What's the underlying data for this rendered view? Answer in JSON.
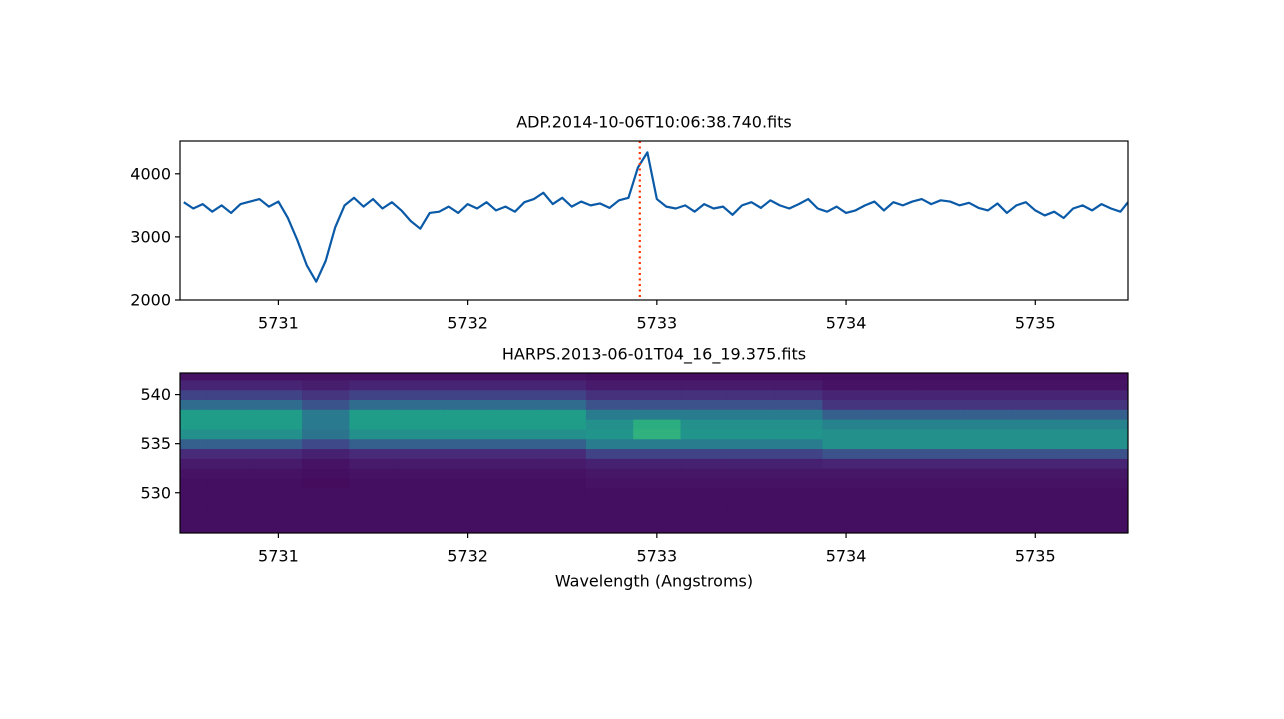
{
  "chart_data": [
    {
      "type": "line",
      "title": "ADP.2014-10-06T10:06:38.740.fits",
      "x": [
        5730.5,
        5730.55,
        5730.6,
        5730.65,
        5730.7,
        5730.75,
        5730.8,
        5730.85,
        5730.9,
        5730.95,
        5731.0,
        5731.05,
        5731.1,
        5731.15,
        5731.2,
        5731.25,
        5731.3,
        5731.35,
        5731.4,
        5731.45,
        5731.5,
        5731.55,
        5731.6,
        5731.65,
        5731.7,
        5731.75,
        5731.8,
        5731.85,
        5731.9,
        5731.95,
        5732.0,
        5732.05,
        5732.1,
        5732.15,
        5732.2,
        5732.25,
        5732.3,
        5732.35,
        5732.4,
        5732.45,
        5732.5,
        5732.55,
        5732.6,
        5732.65,
        5732.7,
        5732.75,
        5732.8,
        5732.85,
        5732.9,
        5732.95,
        5733.0,
        5733.05,
        5733.1,
        5733.15,
        5733.2,
        5733.25,
        5733.3,
        5733.35,
        5733.4,
        5733.45,
        5733.5,
        5733.55,
        5733.6,
        5733.65,
        5733.7,
        5733.75,
        5733.8,
        5733.85,
        5733.9,
        5733.95,
        5734.0,
        5734.05,
        5734.1,
        5734.15,
        5734.2,
        5734.25,
        5734.3,
        5734.35,
        5734.4,
        5734.45,
        5734.5,
        5734.55,
        5734.6,
        5734.65,
        5734.7,
        5734.75,
        5734.8,
        5734.85,
        5734.9,
        5734.95,
        5735.0,
        5735.05,
        5735.1,
        5735.15,
        5735.2,
        5735.25,
        5735.3,
        5735.35,
        5735.4,
        5735.45,
        5735.49
      ],
      "series": [
        {
          "color": "#0a5aa8",
          "values": [
            3550,
            3450,
            3520,
            3400,
            3500,
            3380,
            3520,
            3560,
            3600,
            3480,
            3560,
            3300,
            2950,
            2550,
            2290,
            2620,
            3150,
            3500,
            3620,
            3480,
            3600,
            3450,
            3550,
            3420,
            3250,
            3130,
            3380,
            3400,
            3480,
            3380,
            3520,
            3450,
            3550,
            3420,
            3480,
            3400,
            3550,
            3600,
            3700,
            3520,
            3620,
            3480,
            3560,
            3500,
            3530,
            3460,
            3580,
            3620,
            4100,
            4340,
            3600,
            3480,
            3450,
            3500,
            3400,
            3520,
            3450,
            3480,
            3350,
            3500,
            3550,
            3460,
            3580,
            3500,
            3450,
            3520,
            3600,
            3450,
            3400,
            3480,
            3380,
            3420,
            3500,
            3560,
            3420,
            3550,
            3500,
            3560,
            3600,
            3520,
            3580,
            3560,
            3500,
            3540,
            3460,
            3420,
            3530,
            3380,
            3500,
            3550,
            3420,
            3340,
            3400,
            3300,
            3450,
            3500,
            3420,
            3520,
            3450,
            3400,
            3550
          ]
        }
      ],
      "vline": {
        "value": 5732.91,
        "color": "#ff3300",
        "style": "dotted"
      },
      "xlim": [
        5730.48,
        5735.49
      ],
      "xticks": [
        5731,
        5732,
        5733,
        5734,
        5735
      ],
      "ylim": [
        2000,
        4520
      ],
      "yticks": [
        2000,
        3000,
        4000
      ]
    },
    {
      "type": "heatmap",
      "title": "HARPS.2013-06-01T04_16_19.375.fits",
      "x_label": "Wavelength (Angstroms)",
      "colormap": "viridis",
      "clim": [
        0,
        1
      ],
      "x": [
        5730.5,
        5730.75,
        5731.0,
        5731.25,
        5731.5,
        5731.75,
        5732.0,
        5732.25,
        5732.5,
        5732.75,
        5733.0,
        5733.25,
        5733.5,
        5733.75,
        5734.0,
        5734.25,
        5734.5,
        5734.75,
        5735.0,
        5735.25,
        5735.5
      ],
      "y": [
        526,
        527,
        528,
        529,
        530,
        531,
        532,
        533,
        534,
        535,
        536,
        537,
        538,
        539,
        540,
        541,
        542
      ],
      "z": [
        [
          0.04,
          0.04,
          0.04,
          0.04,
          0.04,
          0.04,
          0.04,
          0.04,
          0.04,
          0.04,
          0.04,
          0.04,
          0.04,
          0.04,
          0.04,
          0.04,
          0.04,
          0.04,
          0.04,
          0.04,
          0.04
        ],
        [
          0.04,
          0.04,
          0.04,
          0.04,
          0.04,
          0.04,
          0.04,
          0.04,
          0.04,
          0.04,
          0.04,
          0.04,
          0.04,
          0.04,
          0.04,
          0.04,
          0.04,
          0.04,
          0.04,
          0.04,
          0.04
        ],
        [
          0.04,
          0.04,
          0.04,
          0.04,
          0.04,
          0.04,
          0.04,
          0.04,
          0.04,
          0.04,
          0.04,
          0.04,
          0.04,
          0.04,
          0.04,
          0.04,
          0.04,
          0.04,
          0.04,
          0.04,
          0.04
        ],
        [
          0.04,
          0.04,
          0.04,
          0.04,
          0.04,
          0.04,
          0.04,
          0.04,
          0.04,
          0.04,
          0.04,
          0.04,
          0.04,
          0.04,
          0.04,
          0.04,
          0.04,
          0.04,
          0.04,
          0.04,
          0.04
        ],
        [
          0.04,
          0.04,
          0.04,
          0.04,
          0.04,
          0.04,
          0.04,
          0.04,
          0.04,
          0.04,
          0.04,
          0.04,
          0.04,
          0.04,
          0.04,
          0.04,
          0.04,
          0.04,
          0.04,
          0.04,
          0.04
        ],
        [
          0.04,
          0.04,
          0.04,
          0.03,
          0.04,
          0.04,
          0.04,
          0.04,
          0.04,
          0.05,
          0.05,
          0.05,
          0.05,
          0.05,
          0.05,
          0.05,
          0.05,
          0.05,
          0.05,
          0.05,
          0.05
        ],
        [
          0.05,
          0.05,
          0.05,
          0.04,
          0.05,
          0.05,
          0.05,
          0.05,
          0.05,
          0.06,
          0.06,
          0.06,
          0.06,
          0.06,
          0.06,
          0.06,
          0.06,
          0.06,
          0.06,
          0.06,
          0.06
        ],
        [
          0.07,
          0.07,
          0.07,
          0.05,
          0.07,
          0.07,
          0.07,
          0.07,
          0.07,
          0.09,
          0.09,
          0.09,
          0.09,
          0.09,
          0.1,
          0.1,
          0.1,
          0.1,
          0.1,
          0.1,
          0.1
        ],
        [
          0.12,
          0.12,
          0.12,
          0.09,
          0.12,
          0.12,
          0.12,
          0.12,
          0.12,
          0.2,
          0.2,
          0.2,
          0.2,
          0.2,
          0.25,
          0.25,
          0.25,
          0.25,
          0.25,
          0.25,
          0.25
        ],
        [
          0.3,
          0.3,
          0.3,
          0.22,
          0.3,
          0.3,
          0.3,
          0.3,
          0.3,
          0.42,
          0.42,
          0.42,
          0.42,
          0.42,
          0.5,
          0.5,
          0.5,
          0.5,
          0.5,
          0.5,
          0.5
        ],
        [
          0.5,
          0.5,
          0.5,
          0.38,
          0.5,
          0.5,
          0.5,
          0.5,
          0.5,
          0.52,
          0.64,
          0.52,
          0.52,
          0.52,
          0.5,
          0.5,
          0.5,
          0.5,
          0.5,
          0.5,
          0.5
        ],
        [
          0.55,
          0.55,
          0.55,
          0.41,
          0.55,
          0.55,
          0.55,
          0.55,
          0.55,
          0.5,
          0.62,
          0.5,
          0.5,
          0.5,
          0.45,
          0.45,
          0.45,
          0.45,
          0.45,
          0.45,
          0.45
        ],
        [
          0.55,
          0.55,
          0.55,
          0.41,
          0.55,
          0.55,
          0.55,
          0.55,
          0.55,
          0.42,
          0.42,
          0.42,
          0.42,
          0.42,
          0.3,
          0.3,
          0.3,
          0.3,
          0.3,
          0.3,
          0.3
        ],
        [
          0.35,
          0.35,
          0.35,
          0.26,
          0.35,
          0.35,
          0.35,
          0.35,
          0.35,
          0.25,
          0.25,
          0.25,
          0.25,
          0.25,
          0.15,
          0.15,
          0.15,
          0.15,
          0.15,
          0.15,
          0.15
        ],
        [
          0.2,
          0.2,
          0.2,
          0.15,
          0.2,
          0.2,
          0.2,
          0.2,
          0.2,
          0.14,
          0.14,
          0.14,
          0.14,
          0.14,
          0.1,
          0.1,
          0.1,
          0.1,
          0.1,
          0.1,
          0.1
        ],
        [
          0.1,
          0.1,
          0.1,
          0.08,
          0.1,
          0.1,
          0.1,
          0.1,
          0.1,
          0.07,
          0.07,
          0.07,
          0.07,
          0.07,
          0.05,
          0.05,
          0.05,
          0.05,
          0.05,
          0.05,
          0.05
        ],
        [
          0.05,
          0.05,
          0.05,
          0.05,
          0.05,
          0.05,
          0.05,
          0.05,
          0.05,
          0.04,
          0.04,
          0.04,
          0.04,
          0.04,
          0.04,
          0.04,
          0.04,
          0.04,
          0.04,
          0.04,
          0.04
        ]
      ],
      "xlim": [
        5730.48,
        5735.49
      ],
      "xticks": [
        5731,
        5732,
        5733,
        5734,
        5735
      ],
      "ylim": [
        525.9,
        542.2
      ],
      "yticks": [
        530,
        535,
        540
      ]
    }
  ]
}
